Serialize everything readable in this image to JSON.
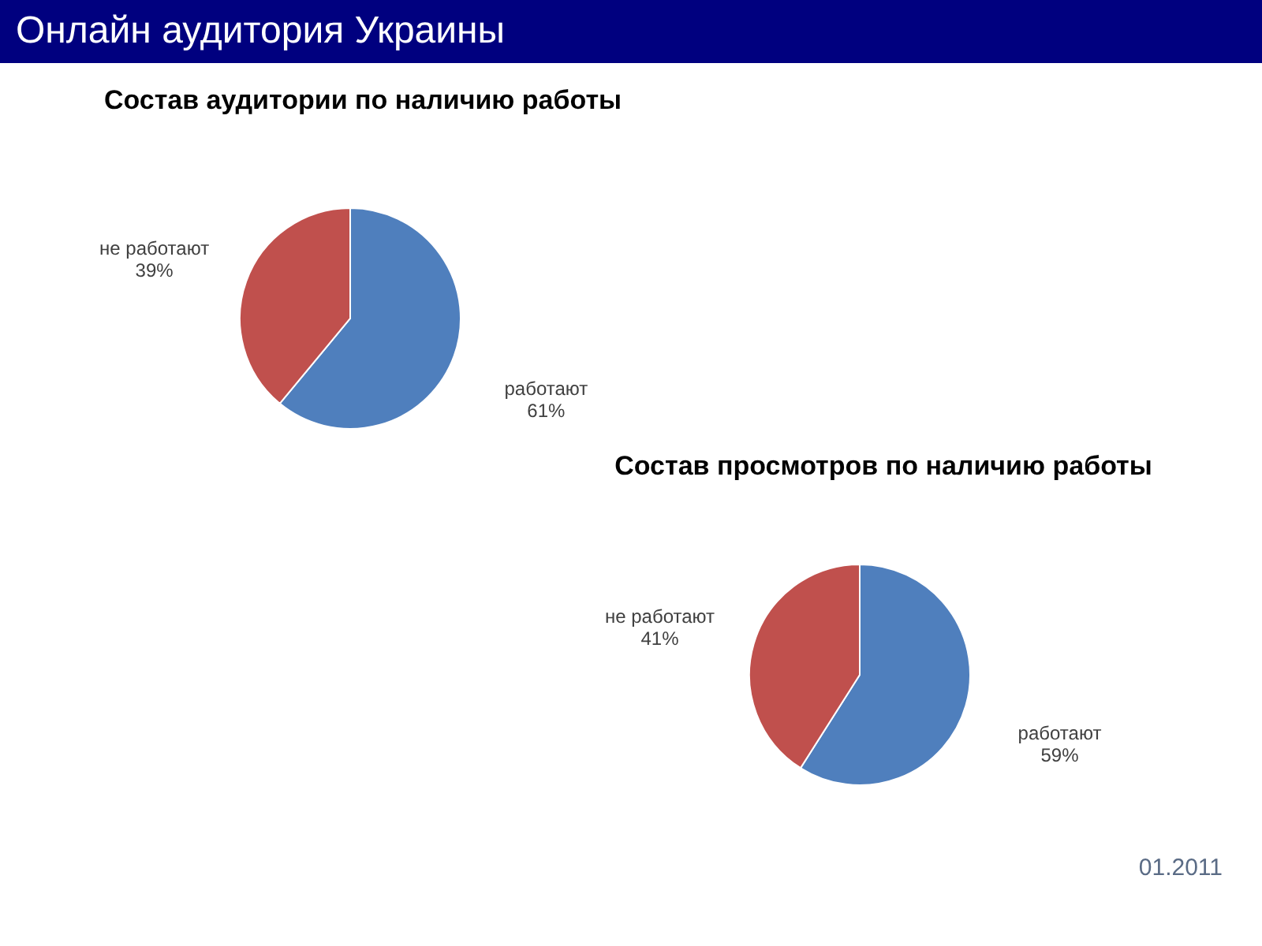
{
  "chart_data": [
    {
      "type": "other",
      "title": "Онлайн аудитория Украины"
    },
    {
      "type": "pie",
      "title": "Состав аудитории по наличию работы",
      "categories": [
        "работают",
        "не работают"
      ],
      "values": [
        61,
        39
      ],
      "colors": [
        "#4f7fbd",
        "#c0504d"
      ],
      "value_labels": [
        "61%",
        "39%"
      ]
    },
    {
      "type": "pie",
      "title": "Состав просмотров по наличию работы",
      "categories": [
        "работают",
        "не работают"
      ],
      "values": [
        59,
        41
      ],
      "colors": [
        "#4f7fbd",
        "#c0504d"
      ],
      "value_labels": [
        "59%",
        "41%"
      ],
      "annotations": [
        "01.2011"
      ]
    }
  ]
}
